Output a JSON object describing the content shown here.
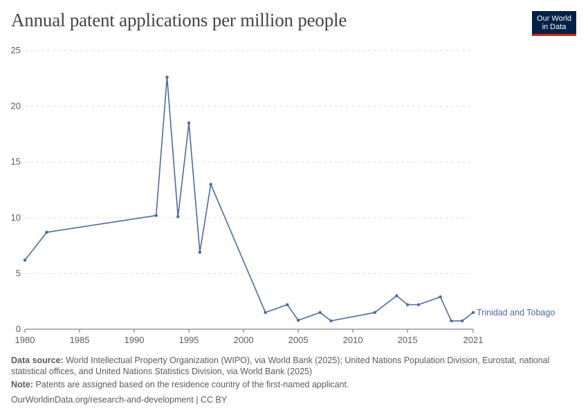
{
  "title": "Annual patent applications per million people",
  "logo": {
    "line1": "Our World",
    "line2": "in Data"
  },
  "footer": {
    "source_label": "Data source:",
    "source_text": "World Intellectual Property Organization (WIPO), via World Bank (2025); United Nations Population Division, Eurostat, national statistical offices, and United Nations Statistics Division, via World Bank (2025)",
    "note_label": "Note:",
    "note_text": "Patents are assigned based on the residence country of the first-named applicant.",
    "url": "OurWorldinData.org/research-and-development | CC BY"
  },
  "colors": {
    "series": "#4c6a9c",
    "grid": "#dddddd",
    "axis": "#666666",
    "text": "#5b5b5b"
  },
  "chart_data": {
    "type": "line",
    "title": "Annual patent applications per million people",
    "xlabel": "",
    "ylabel": "",
    "xlim": [
      1980,
      2021
    ],
    "ylim": [
      0,
      25
    ],
    "xticks": [
      "1980",
      "1985",
      "1990",
      "1995",
      "2000",
      "2005",
      "2010",
      "2015",
      "2021"
    ],
    "xtick_values": [
      1980,
      1985,
      1990,
      1995,
      2000,
      2005,
      2010,
      2015,
      2021
    ],
    "yticks": [
      "0",
      "5",
      "10",
      "15",
      "20",
      "25"
    ],
    "ytick_values": [
      0,
      5,
      10,
      15,
      20,
      25
    ],
    "grid": true,
    "series": [
      {
        "name": "Trinidad and Tobago",
        "x": [
          1980,
          1982,
          1992,
          1993,
          1994,
          1995,
          1996,
          1997,
          2002,
          2004,
          2005,
          2007,
          2008,
          2012,
          2014,
          2015,
          2016,
          2018,
          2019,
          2020,
          2021
        ],
        "values": [
          6.2,
          8.7,
          10.2,
          22.6,
          10.1,
          18.5,
          6.9,
          13.0,
          1.5,
          2.2,
          0.8,
          1.5,
          0.75,
          1.5,
          3.0,
          2.2,
          2.2,
          2.9,
          0.75,
          0.75,
          1.5
        ]
      }
    ]
  }
}
